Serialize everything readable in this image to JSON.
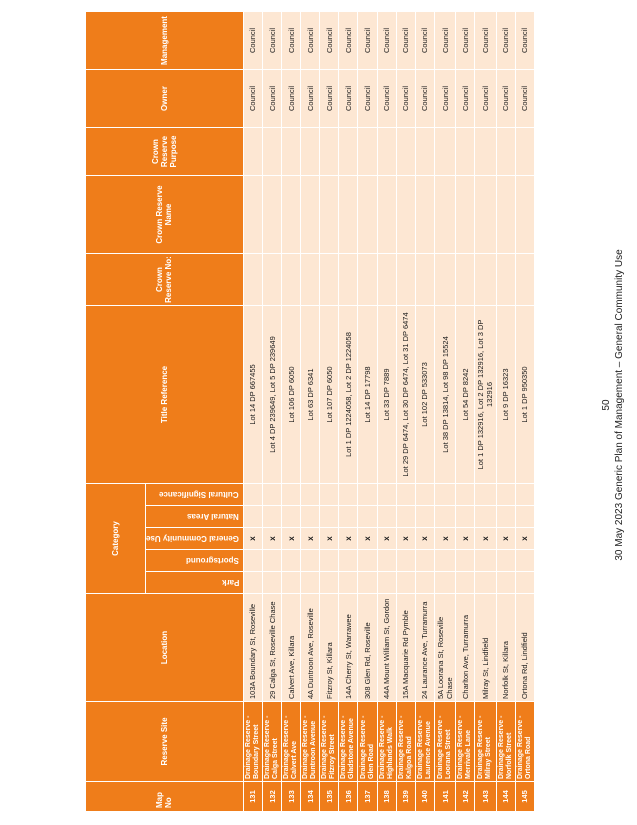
{
  "table": {
    "headers": {
      "map_no": "Map No",
      "reserve_site": "Reserve Site",
      "location": "Location",
      "category": "Category",
      "category_sub": [
        "Park",
        "Sportsground",
        "General Community Use",
        "Natural Areas",
        "Cultural Significance"
      ],
      "title_reference": "Title Reference",
      "crown_reserve_no": "Crown Reserve No:",
      "crown_reserve_name": "Crown Reserve Name",
      "crown_reserve_purpose": "Crown Reserve Purpose",
      "owner": "Owner",
      "management": "Management"
    },
    "tick_symbol": "x",
    "rows": [
      {
        "map_no": "131",
        "site": "Drainage Reserve - Boundary Street",
        "location": "103A Boundary St, Roseville",
        "title": "Lot 14 DP 667455",
        "owner": "Council",
        "management": "Council"
      },
      {
        "map_no": "132",
        "site": "Drainage Reserve - Calga Street",
        "location": "29 Calga St, Roseville Chase",
        "title": "Lot 4 DP 239649, Lot 5 DP 239649",
        "owner": "Council",
        "management": "Council"
      },
      {
        "map_no": "133",
        "site": "Drainage Reserve - Calvert Ave",
        "location": "Calvert Ave, Killara",
        "title": "Lot 106 DP 6050",
        "owner": "Council",
        "management": "Council"
      },
      {
        "map_no": "134",
        "site": "Drainage Reserve - Duntroon Avenue",
        "location": "4A Duntroon Ave, Roseville",
        "title": "Lot 63 DP 6341",
        "owner": "Council",
        "management": "Council"
      },
      {
        "map_no": "135",
        "site": "Drainage Reserve - Fitzroy Street",
        "location": "Fitzroy St, Killara",
        "title": "Lot 107 DP 6050",
        "owner": "Council",
        "management": "Council"
      },
      {
        "map_no": "136",
        "site": "Drainage Reserve - Gladstone Avenue",
        "location": "14A Cherry St, Warrawee",
        "title": "Lot 1 DP 1224058, Lot 2 DP 1224058",
        "owner": "Council",
        "management": "Council"
      },
      {
        "map_no": "137",
        "site": "Drainage Reserve - Glen Road",
        "location": "308 Glen Rd, Roseville",
        "title": "Lot 14 DP 17798",
        "owner": "Council",
        "management": "Council"
      },
      {
        "map_no": "138",
        "site": "Drainage Reserve - Highlands Walk",
        "location": "44A Mount William St, Gordon",
        "title": "Lot 33 DP 7889",
        "owner": "Council",
        "management": "Council"
      },
      {
        "map_no": "139",
        "site": "Drainage Reserve - Kalgoa Road",
        "location": "15A Macquarie Rd Pymble",
        "title": "Lot 29 DP 6474, Lot 30 DP 6474, Lot 31 DP 6474",
        "owner": "Council",
        "management": "Council"
      },
      {
        "map_no": "140",
        "site": "Drainage Reserve - Laurence Avenue",
        "location": "24 Laurance Ave, Turramurra",
        "title": "Lot 102 DP 533073",
        "owner": "Council",
        "management": "Council"
      },
      {
        "map_no": "141",
        "site": "Drainage Reserve - Loorana Street",
        "location": "5A Loorana St, Roseville Chase",
        "title": "Lot 38 DP 13814, Lot 98 DP 15524",
        "owner": "Council",
        "management": "Council"
      },
      {
        "map_no": "142",
        "site": "Drainage Reserve - Merrivale Lane",
        "location": "Charlton Ave, Turramurra",
        "title": "Lot 54 DP 8242",
        "owner": "Council",
        "management": "Council"
      },
      {
        "map_no": "143",
        "site": "Drainage Reserve - Milray Street",
        "location": "Milray St, Lindfield",
        "title": "Lot 1 DP 132916, Lot 2 DP 132916, Lot 3 DP 132916",
        "owner": "Council",
        "management": "Council"
      },
      {
        "map_no": "144",
        "site": "Drainage Reserve - Norfolk Street",
        "location": "Norfolk St, Killara",
        "title": "Lot 9 DP 16323",
        "owner": "Council",
        "management": "Council"
      },
      {
        "map_no": "145",
        "site": "Drainage Reserve - Ortona Road",
        "location": "Ortona Rd, Lindfield",
        "title": "Lot 1 DP 950350",
        "owner": "Council",
        "management": "Council"
      }
    ]
  },
  "footer": {
    "page_number": "50",
    "text": "30 May 2023   Generic Plan of Management – General Community Use"
  }
}
